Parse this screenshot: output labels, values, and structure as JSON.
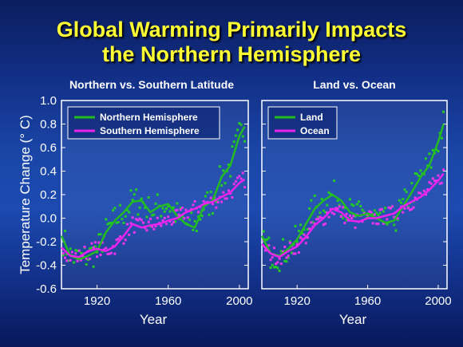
{
  "title_line1": "Global Warming Primarily Impacts",
  "title_line2": "the Northern Hemisphere",
  "y_axis_label": "Temperature Change (° C)",
  "colors": {
    "series_a": "#22bb22",
    "series_b": "#ee22ee",
    "dots_a": "#22cc22",
    "dots_b": "#ee33ee"
  },
  "chart_data": [
    {
      "type": "line",
      "title": "Northern vs. Southern Latitude",
      "xlabel": "Year",
      "ylabel": "Temperature Change (° C)",
      "xlim": [
        1900,
        2005
      ],
      "ylim": [
        -0.6,
        1.0
      ],
      "xticks": [
        1920,
        1960,
        2000
      ],
      "yticks": [
        "-0.6",
        "-0.4",
        "-0.2",
        "0.0",
        "0.2",
        "0.4",
        "0.6",
        "0.8",
        "1.0"
      ],
      "legend_position": "top-left",
      "series": [
        {
          "name": "Northern Hemisphere",
          "x": [
            1900,
            1905,
            1910,
            1915,
            1920,
            1925,
            1930,
            1935,
            1940,
            1945,
            1950,
            1955,
            1960,
            1965,
            1970,
            1975,
            1980,
            1985,
            1990,
            1995,
            2000,
            2003
          ],
          "values": [
            -0.15,
            -0.32,
            -0.35,
            -0.32,
            -0.28,
            -0.12,
            -0.02,
            0.05,
            0.14,
            0.15,
            0.05,
            0.1,
            0.12,
            0.02,
            -0.05,
            -0.08,
            0.1,
            0.15,
            0.35,
            0.45,
            0.7,
            0.78
          ]
        },
        {
          "name": "Southern Hemisphere",
          "x": [
            1900,
            1905,
            1910,
            1915,
            1920,
            1925,
            1930,
            1935,
            1940,
            1945,
            1950,
            1955,
            1960,
            1965,
            1970,
            1975,
            1980,
            1985,
            1990,
            1995,
            2000,
            2003
          ],
          "values": [
            -0.25,
            -0.32,
            -0.33,
            -0.28,
            -0.26,
            -0.28,
            -0.24,
            -0.15,
            -0.05,
            -0.08,
            -0.06,
            -0.05,
            -0.02,
            0.0,
            0.05,
            0.08,
            0.12,
            0.14,
            0.18,
            0.22,
            0.3,
            0.33
          ]
        }
      ]
    },
    {
      "type": "line",
      "title": "Land vs. Ocean",
      "xlabel": "Year",
      "xlim": [
        1900,
        2005
      ],
      "ylim": [
        -0.6,
        1.0
      ],
      "xticks": [
        1920,
        1960,
        2000
      ],
      "legend_position": "top-left",
      "series": [
        {
          "name": "Land",
          "x": [
            1900,
            1905,
            1910,
            1915,
            1920,
            1925,
            1930,
            1935,
            1940,
            1945,
            1950,
            1955,
            1960,
            1965,
            1970,
            1975,
            1980,
            1985,
            1990,
            1995,
            2000,
            2003
          ],
          "values": [
            -0.15,
            -0.3,
            -0.32,
            -0.26,
            -0.18,
            -0.05,
            0.08,
            0.15,
            0.2,
            0.15,
            0.05,
            0.02,
            0.04,
            0.0,
            -0.04,
            -0.02,
            0.1,
            0.22,
            0.35,
            0.45,
            0.65,
            0.8
          ]
        },
        {
          "name": "Ocean",
          "x": [
            1900,
            1905,
            1910,
            1915,
            1920,
            1925,
            1930,
            1935,
            1940,
            1945,
            1950,
            1955,
            1960,
            1965,
            1970,
            1975,
            1980,
            1985,
            1990,
            1995,
            2000,
            2003
          ],
          "values": [
            -0.22,
            -0.3,
            -0.33,
            -0.28,
            -0.24,
            -0.16,
            -0.06,
            0.0,
            0.08,
            0.05,
            -0.02,
            -0.03,
            0.0,
            0.0,
            0.02,
            0.04,
            0.1,
            0.14,
            0.18,
            0.24,
            0.32,
            0.38
          ]
        }
      ]
    }
  ]
}
